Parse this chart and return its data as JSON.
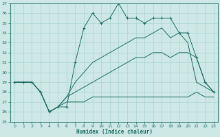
{
  "xlabel": "Humidex (Indice chaleur)",
  "bg_color": "#cde8e5",
  "line_color": "#1e6b63",
  "grid_color": "#aad4d0",
  "ylim": [
    25,
    37
  ],
  "xlim": [
    -0.5,
    23.5
  ],
  "yticks": [
    25,
    26,
    27,
    28,
    29,
    30,
    31,
    32,
    33,
    34,
    35,
    36,
    37
  ],
  "xticks": [
    0,
    1,
    2,
    3,
    4,
    5,
    6,
    7,
    8,
    9,
    10,
    11,
    12,
    13,
    14,
    15,
    16,
    17,
    18,
    19,
    20,
    21,
    22,
    23
  ],
  "jagged": [
    29,
    29,
    29,
    28,
    26,
    26.5,
    26.5,
    31,
    34.5,
    36,
    35,
    35.5,
    37,
    35.5,
    35.5,
    35,
    35.5,
    35.5,
    35.5,
    34,
    34,
    31.5,
    29,
    28
  ],
  "smooth1": [
    29,
    29,
    29,
    28,
    26,
    26.5,
    27.5,
    29,
    30,
    31,
    31.5,
    32,
    32.5,
    33,
    33.5,
    33.5,
    34,
    34.5,
    33.5,
    34,
    33,
    29,
    28.5,
    28
  ],
  "smooth2": [
    29,
    29,
    29,
    28,
    26,
    26.5,
    27.5,
    28,
    28.5,
    29,
    29.5,
    30,
    30.5,
    31,
    31.5,
    31.5,
    32,
    32,
    31.5,
    32,
    32,
    31.5,
    29,
    28
  ],
  "smooth3": [
    29,
    29,
    29,
    28,
    26,
    26.5,
    27,
    27,
    27,
    27.5,
    27.5,
    27.5,
    27.5,
    27.5,
    27.5,
    27.5,
    27.5,
    27.5,
    27.5,
    27.5,
    27.5,
    28,
    27.5,
    27.5
  ]
}
